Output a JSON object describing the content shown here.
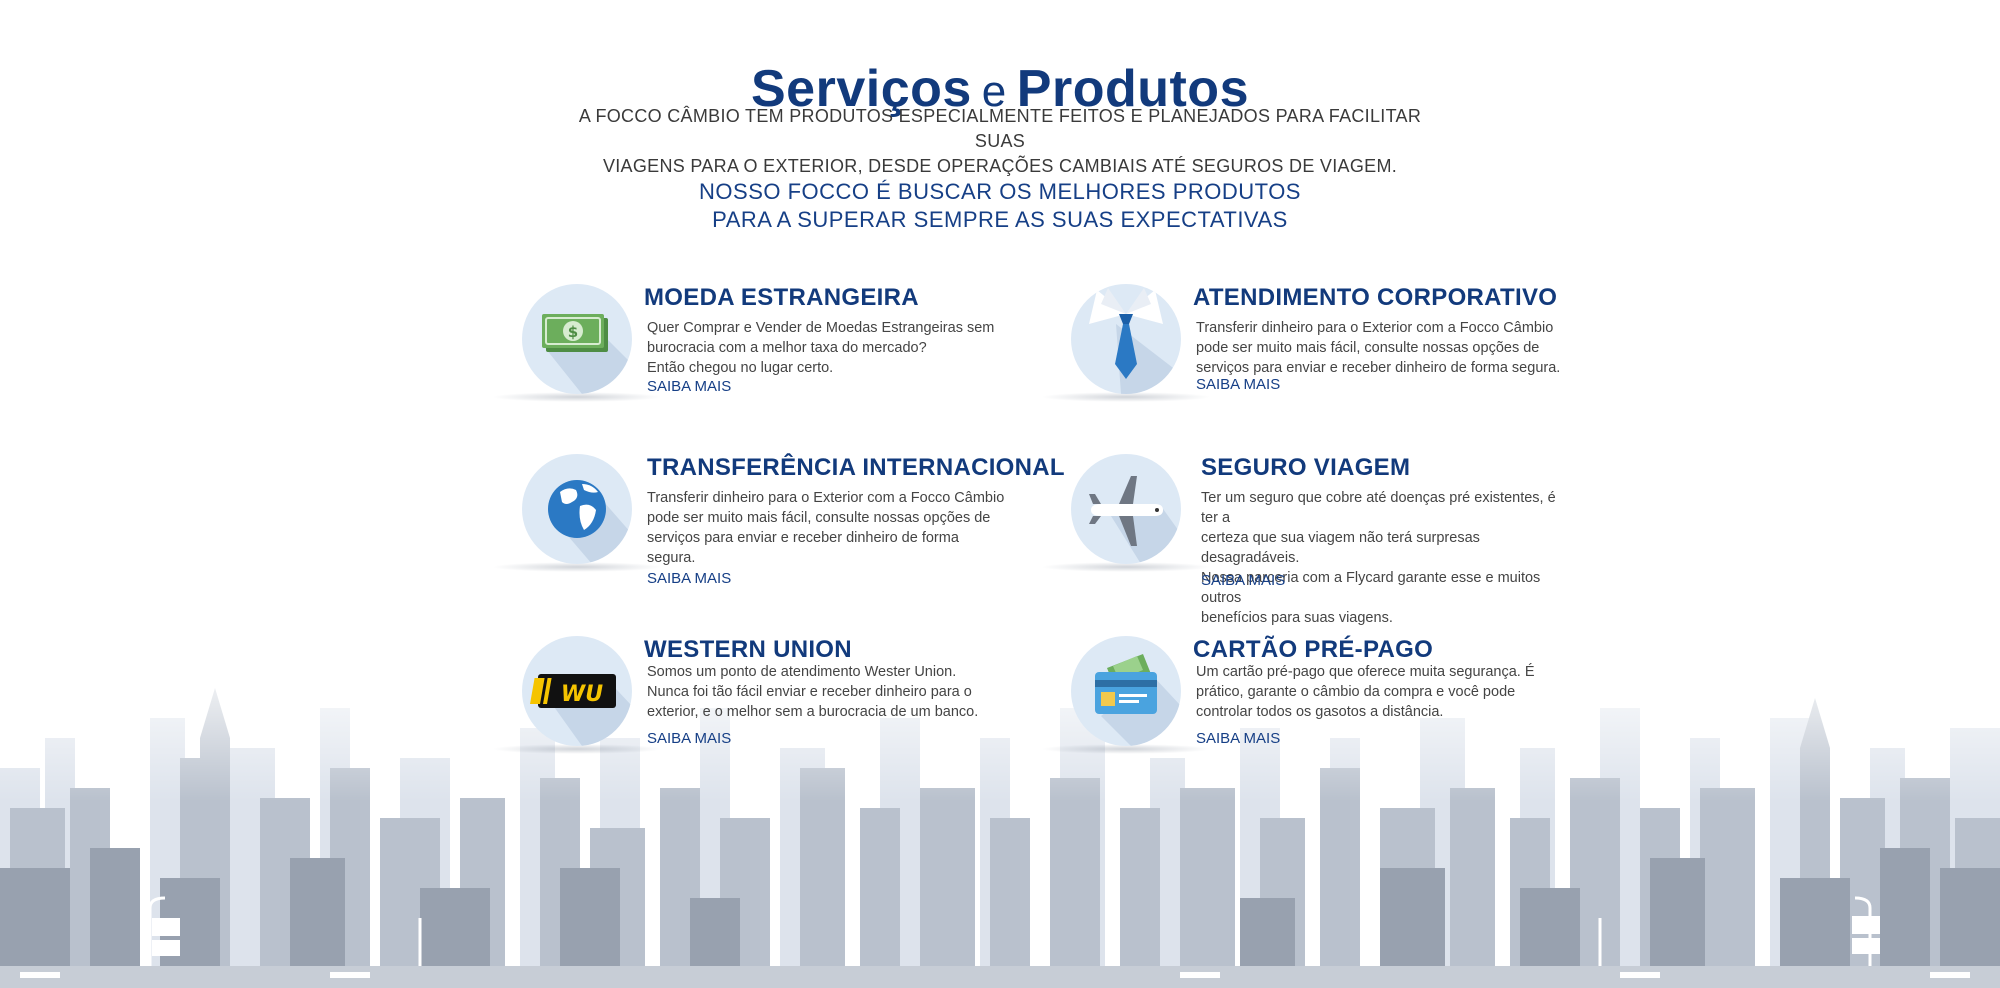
{
  "header": {
    "title_part1": "Serviços",
    "title_conj": "e",
    "title_part2": "Produtos",
    "intro_line1": "A FOCCO CÂMBIO TEM PRODUTOS ESPECIALMENTE FEITOS E PLANEJADOS PARA FACILITAR SUAS",
    "intro_line2": "VIAGENS PARA O EXTERIOR, DESDE OPERAÇÕES CAMBIAIS ATÉ SEGUROS DE VIAGEM.",
    "tagline_line1": "NOSSO FOCCO É BUSCAR OS MELHORES PRODUTOS",
    "tagline_line2": "PARA A SUPERAR SEMPRE AS SUAS EXPECTATIVAS"
  },
  "services": [
    {
      "icon": "money-icon",
      "title": "MOEDA ESTRANGEIRA",
      "desc_lines": [
        "Quer Comprar e Vender de Moedas Estrangeiras sem",
        "burocracia com a melhor taxa do mercado?",
        "Então chegou no lugar certo."
      ],
      "link": "SAIBA MAIS"
    },
    {
      "icon": "tie-icon",
      "title": "ATENDIMENTO CORPORATIVO",
      "desc_lines": [
        "Transferir dinheiro para o Exterior com a Focco Câmbio",
        "pode ser muito mais fácil, consulte nossas opções de",
        "serviços para enviar e receber dinheiro de forma segura."
      ],
      "link": "SAIBA MAIS"
    },
    {
      "icon": "globe-icon",
      "title": "TRANSFERÊNCIA INTERNACIONAL",
      "desc_lines": [
        "Transferir dinheiro para o Exterior com a Focco Câmbio",
        "pode ser muito mais fácil, consulte nossas opções de",
        "serviços para enviar e receber dinheiro de forma",
        "segura."
      ],
      "link": "SAIBA MAIS"
    },
    {
      "icon": "airplane-icon",
      "title": "SEGURO VIAGEM",
      "desc_lines": [
        "Ter um seguro que cobre até doenças pré existentes, é ter a",
        "certeza que sua viagem não terá surpresas desagradáveis.",
        "Nossa parceria com a Flycard garante esse e muitos outros",
        "benefícios para suas viagens."
      ],
      "link": "SAIBA MAIS"
    },
    {
      "icon": "western-union-icon",
      "icon_text": "WU",
      "title": "WESTERN UNION",
      "desc_lines": [
        "Somos um ponto de atendimento Wester Union.",
        "Nunca foi tão fácil enviar e receber dinheiro para o",
        "exterior, e o melhor sem a burocracia de um banco."
      ],
      "link": "SAIBA MAIS"
    },
    {
      "icon": "prepaid-card-icon",
      "title": "CARTÃO PRÉ-PAGO",
      "desc_lines": [
        "Um cartão pré-pago que oferece muita segurança. É",
        "prático, garante o câmbio da compra e você pode",
        "controlar todos os gasotos a distância."
      ],
      "link": "SAIBA MAIS"
    }
  ],
  "colors": {
    "brand_blue": "#123a7c",
    "icon_bg": "#dde9f5",
    "skyline": "#a3abb8"
  }
}
